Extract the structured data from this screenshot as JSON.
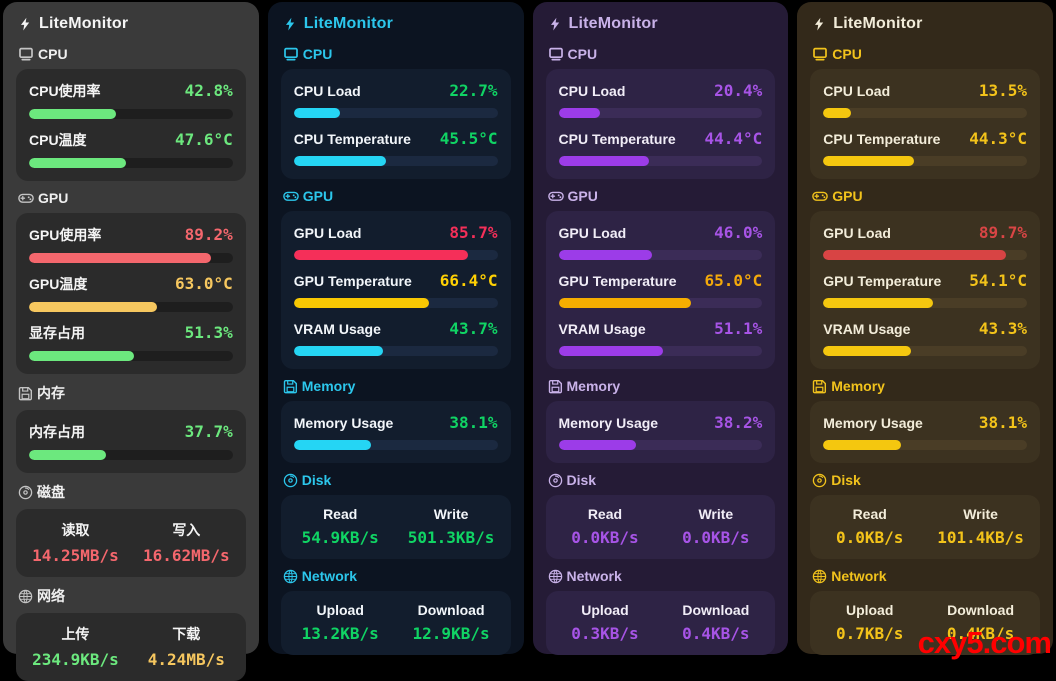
{
  "watermark": {
    "text": "cxy5.com",
    "color": "#ff0000"
  },
  "page_bg": "#000000",
  "panels": [
    {
      "id": "graphite",
      "title": "LiteMonitor",
      "theme": {
        "bg": "#3a3a3a",
        "card": "#2b2b2b",
        "track": "#1e1e1e",
        "title_color": "#f5f5f5",
        "section_color": "#efefef",
        "icon_color": "#c4c4c4",
        "label_color": "#f5f5f5"
      },
      "sections": [
        {
          "name": "cpu",
          "icon": "computer-icon",
          "label": "CPU",
          "metrics": [
            {
              "label": "CPU使用率",
              "value": "42.8%",
              "percent": 42.8,
              "value_color": "#6ce87e",
              "bar_color": "#6ce87e"
            },
            {
              "label": "CPU温度",
              "value": "47.6°C",
              "percent": 47.6,
              "value_color": "#6ce87e",
              "bar_color": "#6ce87e"
            }
          ]
        },
        {
          "name": "gpu",
          "icon": "gamepad-icon",
          "label": "GPU",
          "metrics": [
            {
              "label": "GPU使用率",
              "value": "89.2%",
              "percent": 89.2,
              "value_color": "#f4676d",
              "bar_color": "#f4676d"
            },
            {
              "label": "GPU温度",
              "value": "63.0°C",
              "percent": 63.0,
              "value_color": "#f6c75f",
              "bar_color": "#f6c75f"
            },
            {
              "label": "显存占用",
              "value": "51.3%",
              "percent": 51.3,
              "value_color": "#6ce87e",
              "bar_color": "#6ce87e"
            }
          ]
        },
        {
          "name": "memory",
          "icon": "floppy-icon",
          "label": "内存",
          "metrics": [
            {
              "label": "内存占用",
              "value": "37.7%",
              "percent": 37.7,
              "value_color": "#6ce87e",
              "bar_color": "#6ce87e"
            }
          ]
        },
        {
          "name": "disk",
          "icon": "disc-icon",
          "label": "磁盘",
          "columns": [
            {
              "label": "读取",
              "value": "14.25MB/s",
              "value_color": "#f4676d"
            },
            {
              "label": "写入",
              "value": "16.62MB/s",
              "value_color": "#f4676d"
            }
          ]
        },
        {
          "name": "network",
          "icon": "globe-icon",
          "label": "网络",
          "columns": [
            {
              "label": "上传",
              "value": "234.9KB/s",
              "value_color": "#6ce87e"
            },
            {
              "label": "下载",
              "value": "4.24MB/s",
              "value_color": "#f6c75f"
            }
          ]
        }
      ]
    },
    {
      "id": "navy",
      "title": "LiteMonitor",
      "theme": {
        "bg": "#0c1421",
        "card": "#121d2d",
        "track": "#1b2940",
        "title_color": "#2cc7ec",
        "section_color": "#2cc7ec",
        "icon_color": "#2cc7ec",
        "label_color": "#f2f6fa"
      },
      "sections": [
        {
          "name": "cpu",
          "icon": "computer-icon",
          "label": "CPU",
          "metrics": [
            {
              "label": "CPU Load",
              "value": "22.7%",
              "percent": 22.7,
              "value_color": "#10d464",
              "bar_color": "#25d5f4"
            },
            {
              "label": "CPU Temperature",
              "value": "45.5°C",
              "percent": 45.5,
              "value_color": "#10d464",
              "bar_color": "#25d5f4"
            }
          ]
        },
        {
          "name": "gpu",
          "icon": "gamepad-icon",
          "label": "GPU",
          "metrics": [
            {
              "label": "GPU Load",
              "value": "85.7%",
              "percent": 85.7,
              "value_color": "#f52f59",
              "bar_color": "#f52f59"
            },
            {
              "label": "GPU Temperature",
              "value": "66.4°C",
              "percent": 66.4,
              "value_color": "#ffd103",
              "bar_color": "#f8c803"
            },
            {
              "label": "VRAM Usage",
              "value": "43.7%",
              "percent": 43.7,
              "value_color": "#10d464",
              "bar_color": "#25d5f4"
            }
          ]
        },
        {
          "name": "memory",
          "icon": "floppy-icon",
          "label": "Memory",
          "metrics": [
            {
              "label": "Memory Usage",
              "value": "38.1%",
              "percent": 38.1,
              "value_color": "#10d464",
              "bar_color": "#25d5f4"
            }
          ]
        },
        {
          "name": "disk",
          "icon": "disc-icon",
          "label": "Disk",
          "columns": [
            {
              "label": "Read",
              "value": "54.9KB/s",
              "value_color": "#10d464"
            },
            {
              "label": "Write",
              "value": "501.3KB/s",
              "value_color": "#10d464"
            }
          ]
        },
        {
          "name": "network",
          "icon": "globe-icon",
          "label": "Network",
          "columns": [
            {
              "label": "Upload",
              "value": "13.2KB/s",
              "value_color": "#10d464"
            },
            {
              "label": "Download",
              "value": "12.9KB/s",
              "value_color": "#10d464"
            }
          ]
        }
      ]
    },
    {
      "id": "violet",
      "title": "LiteMonitor",
      "theme": {
        "bg": "#251b36",
        "card": "#2e2345",
        "track": "#3b2c57",
        "title_color": "#c9b2e9",
        "section_color": "#c9b2e9",
        "icon_color": "#c9b2e9",
        "label_color": "#f1edf7"
      },
      "sections": [
        {
          "name": "cpu",
          "icon": "computer-icon",
          "label": "CPU",
          "metrics": [
            {
              "label": "CPU Load",
              "value": "20.4%",
              "percent": 20.4,
              "value_color": "#a754e6",
              "bar_color": "#9c3ce8"
            },
            {
              "label": "CPU Temperature",
              "value": "44.4°C",
              "percent": 44.4,
              "value_color": "#a754e6",
              "bar_color": "#9c3ce8"
            }
          ]
        },
        {
          "name": "gpu",
          "icon": "gamepad-icon",
          "label": "GPU",
          "metrics": [
            {
              "label": "GPU Load",
              "value": "46.0%",
              "percent": 46.0,
              "value_color": "#a754e6",
              "bar_color": "#9c3ce8"
            },
            {
              "label": "GPU Temperature",
              "value": "65.0°C",
              "percent": 65.0,
              "value_color": "#f3a90b",
              "bar_color": "#f5ad00"
            },
            {
              "label": "VRAM Usage",
              "value": "51.1%",
              "percent": 51.1,
              "value_color": "#a754e6",
              "bar_color": "#9c3ce8"
            }
          ]
        },
        {
          "name": "memory",
          "icon": "floppy-icon",
          "label": "Memory",
          "metrics": [
            {
              "label": "Memory Usage",
              "value": "38.2%",
              "percent": 38.2,
              "value_color": "#a754e6",
              "bar_color": "#9c3ce8"
            }
          ]
        },
        {
          "name": "disk",
          "icon": "disc-icon",
          "label": "Disk",
          "columns": [
            {
              "label": "Read",
              "value": "0.0KB/s",
              "value_color": "#a754e6"
            },
            {
              "label": "Write",
              "value": "0.0KB/s",
              "value_color": "#a754e6"
            }
          ]
        },
        {
          "name": "network",
          "icon": "globe-icon",
          "label": "Network",
          "columns": [
            {
              "label": "Upload",
              "value": "0.3KB/s",
              "value_color": "#a754e6"
            },
            {
              "label": "Download",
              "value": "0.4KB/s",
              "value_color": "#a754e6"
            }
          ]
        }
      ]
    },
    {
      "id": "amber",
      "title": "LiteMonitor",
      "theme": {
        "bg": "#33291a",
        "card": "#3c3220",
        "track": "#4a3d26",
        "title_color": "#f2ecd9",
        "section_color": "#f2c31c",
        "icon_color": "#f2c31c",
        "label_color": "#f3edda"
      },
      "sections": [
        {
          "name": "cpu",
          "icon": "computer-icon",
          "label": "CPU",
          "metrics": [
            {
              "label": "CPU Load",
              "value": "13.5%",
              "percent": 13.5,
              "value_color": "#f3c31a",
              "bar_color": "#f4c70f"
            },
            {
              "label": "CPU Temperature",
              "value": "44.3°C",
              "percent": 44.3,
              "value_color": "#f3c31a",
              "bar_color": "#f4c70f"
            }
          ]
        },
        {
          "name": "gpu",
          "icon": "gamepad-icon",
          "label": "GPU",
          "metrics": [
            {
              "label": "GPU Load",
              "value": "89.7%",
              "percent": 89.7,
              "value_color": "#d94545",
              "bar_color": "#d84444"
            },
            {
              "label": "GPU Temperature",
              "value": "54.1°C",
              "percent": 54.1,
              "value_color": "#f3c31a",
              "bar_color": "#f4c70f"
            },
            {
              "label": "VRAM Usage",
              "value": "43.3%",
              "percent": 43.3,
              "value_color": "#f3c31a",
              "bar_color": "#f4c70f"
            }
          ]
        },
        {
          "name": "memory",
          "icon": "floppy-icon",
          "label": "Memory",
          "metrics": [
            {
              "label": "Memory Usage",
              "value": "38.1%",
              "percent": 38.1,
              "value_color": "#f3c31a",
              "bar_color": "#f4c70f"
            }
          ]
        },
        {
          "name": "disk",
          "icon": "disc-icon",
          "label": "Disk",
          "columns": [
            {
              "label": "Read",
              "value": "0.0KB/s",
              "value_color": "#f3c31a"
            },
            {
              "label": "Write",
              "value": "101.4KB/s",
              "value_color": "#f3c31a"
            }
          ]
        },
        {
          "name": "network",
          "icon": "globe-icon",
          "label": "Network",
          "columns": [
            {
              "label": "Upload",
              "value": "0.7KB/s",
              "value_color": "#f3c31a"
            },
            {
              "label": "Download",
              "value": "0.4KB/s",
              "value_color": "#f3c31a"
            }
          ]
        }
      ]
    }
  ]
}
